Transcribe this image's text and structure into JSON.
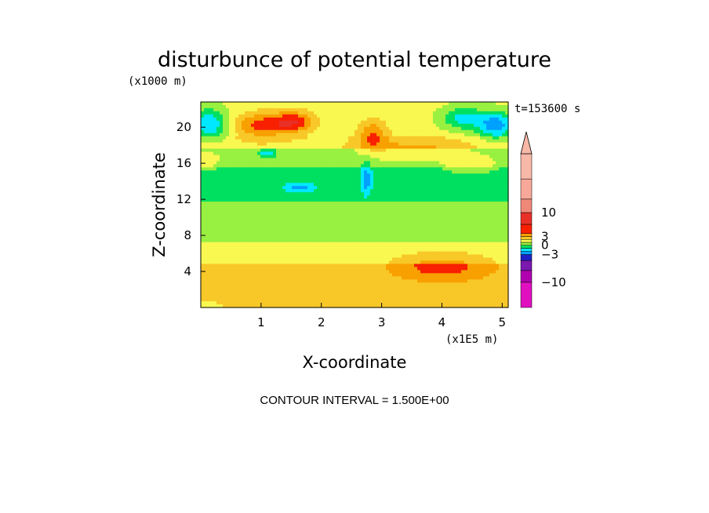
{
  "chart_data": {
    "type": "heatmap",
    "title": "disturbunce of potential temperature",
    "xlabel": "X-coordinate",
    "ylabel": "Z-coordinate",
    "x_unit": "(x1E5 m)",
    "y_unit": "(x1000 m)",
    "time_label": "t=153600 s",
    "contour_interval_label": "CONTOUR INTERVAL = 1.500E+00",
    "xlim": [
      0,
      5.1
    ],
    "ylim": [
      0,
      22.8
    ],
    "x_ticks": [
      1,
      2,
      3,
      4,
      5
    ],
    "y_ticks": [
      4,
      8,
      12,
      16,
      20
    ],
    "colorbar_labels": [
      10,
      3,
      0,
      -3,
      -10
    ],
    "colorbar_levels": [
      -16.5,
      -15,
      -13.5,
      -12,
      -10.5,
      -9,
      -7.5,
      -6,
      -4.5,
      -3,
      -1.5,
      0,
      1.5,
      3,
      4.5,
      6,
      7.5,
      9,
      10.5,
      12,
      13.5,
      15,
      16.5
    ],
    "bands": [
      {
        "z": [
          0.0,
          0.8
        ],
        "value": 1.5
      },
      {
        "z": [
          0.8,
          2.2
        ],
        "value": 2.0
      },
      {
        "z": [
          2.2,
          4.8
        ],
        "value": 2.5
      },
      {
        "z": [
          4.8,
          7.2
        ],
        "value": 1.0
      },
      {
        "z": [
          7.2,
          8.4
        ],
        "value": -0.4
      },
      {
        "z": [
          8.4,
          9.6
        ],
        "value": -1.0
      },
      {
        "z": [
          9.6,
          10.6
        ],
        "value": -0.4
      },
      {
        "z": [
          10.6,
          11.6
        ],
        "value": -1.0
      },
      {
        "z": [
          11.6,
          15.4
        ],
        "value": -2.0
      },
      {
        "z": [
          15.4,
          17.6
        ],
        "value": -1.0
      },
      {
        "z": [
          17.6,
          19.0
        ],
        "value": 1.0
      },
      {
        "z": [
          19.0,
          22.8
        ],
        "value": 0.5
      }
    ],
    "blobs": [
      {
        "x": 1.0,
        "z": 20.2,
        "rx": 0.45,
        "rz": 1.4,
        "value": 4.5
      },
      {
        "x": 1.55,
        "z": 20.6,
        "rx": 0.35,
        "rz": 1.2,
        "value": 4.8
      },
      {
        "x": 2.85,
        "z": 19.2,
        "rx": 0.25,
        "rz": 1.6,
        "value": 3.8
      },
      {
        "x": 0.15,
        "z": 20.3,
        "rx": 0.3,
        "rz": 1.8,
        "value": -5.0
      },
      {
        "x": 4.35,
        "z": 21.0,
        "rx": 0.35,
        "rz": 1.3,
        "value": -4.0
      },
      {
        "x": 4.9,
        "z": 20.2,
        "rx": 0.3,
        "rz": 1.5,
        "value": -6.0
      },
      {
        "x": 2.75,
        "z": 14.2,
        "rx": 0.09,
        "rz": 1.8,
        "value": -3.5
      },
      {
        "x": 1.65,
        "z": 13.3,
        "rx": 0.25,
        "rz": 0.5,
        "value": -3.5
      },
      {
        "x": 1.1,
        "z": 17.1,
        "rx": 0.12,
        "rz": 0.4,
        "value": -3.5
      },
      {
        "x": 3.5,
        "z": 17.5,
        "rx": 0.9,
        "rz": 1.3,
        "value": 2.5
      },
      {
        "x": 0.1,
        "z": 16.5,
        "rx": 0.25,
        "rz": 1.2,
        "value": 2.0
      },
      {
        "x": 4.5,
        "z": 16.0,
        "rx": 0.45,
        "rz": 1.0,
        "value": 2.0
      },
      {
        "x": 4.0,
        "z": 4.5,
        "rx": 0.7,
        "rz": 1.3,
        "value": 3.0
      }
    ]
  }
}
